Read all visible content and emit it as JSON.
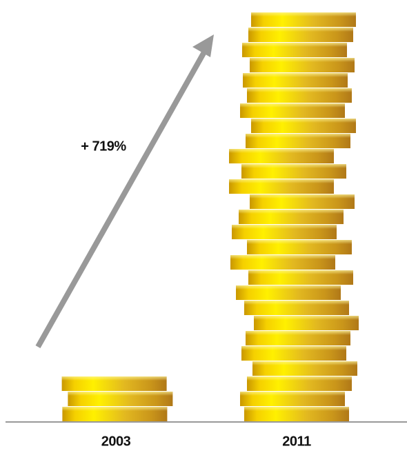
{
  "chart_data": {
    "type": "pictograph",
    "categories": [
      "2003",
      "2011"
    ],
    "values": [
      3,
      27
    ],
    "annotation": "+ 719%"
  }
}
